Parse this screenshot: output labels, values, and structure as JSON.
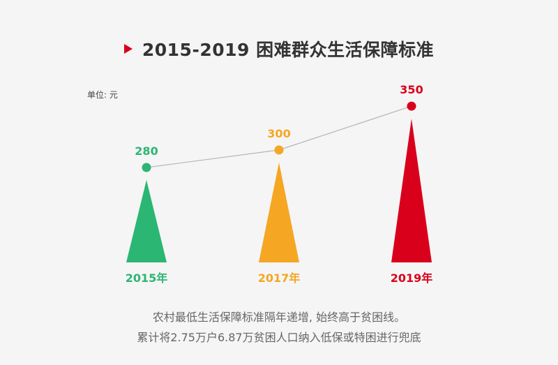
{
  "title": "2015-2019 困难群众生活保障标准",
  "unit_label": "单位: 元",
  "colors": {
    "marker": "#d9001b",
    "series": [
      "#2bb673",
      "#f5a623",
      "#d9001b"
    ],
    "connector": "#b5b5b5"
  },
  "chart_data": {
    "type": "bar",
    "categories": [
      "2015年",
      "2017年",
      "2019年"
    ],
    "values": [
      280,
      300,
      350
    ],
    "value_labels": [
      "280",
      "300",
      "350"
    ],
    "title": "2015-2019 困难群众生活保障标准",
    "ylabel": "单位: 元",
    "grid": false
  },
  "footnotes": [
    "农村最低生活保障标准隔年递增, 始终高于贫困线。",
    "累计将2.75万户6.87万贫困人口纳入低保或特困进行兜底"
  ]
}
